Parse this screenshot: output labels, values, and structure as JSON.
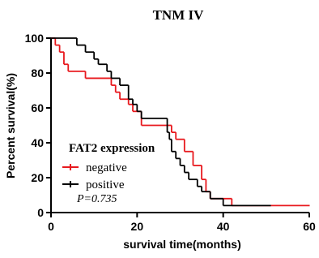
{
  "chart_data": {
    "type": "survival",
    "title": "TNM IV",
    "x_label": "survival time(months)",
    "y_label": "Percent survival(%)",
    "legend_title": "FAT2 expression",
    "annotation": "P=0.735",
    "xlim": [
      0,
      60
    ],
    "xticks": [
      0,
      20,
      40,
      60
    ],
    "ylim": [
      0,
      100
    ],
    "yticks": [
      0,
      20,
      40,
      60,
      80,
      100
    ],
    "series": [
      {
        "name": "negative",
        "color": "#e8191e",
        "x": [
          0,
          1,
          2,
          3,
          4,
          8,
          14,
          15,
          16,
          18,
          19,
          21,
          28,
          29,
          31,
          33,
          35,
          36,
          37,
          42,
          60
        ],
        "values": [
          100,
          96,
          92,
          85,
          81,
          77,
          73,
          69,
          65,
          62,
          58,
          50,
          46,
          42,
          35,
          27,
          19,
          12,
          8,
          4,
          4
        ]
      },
      {
        "name": "positive",
        "color": "#000000",
        "x": [
          0,
          6,
          8,
          10,
          11,
          13,
          14,
          16,
          18,
          19,
          20,
          21,
          27,
          27.5,
          28,
          29,
          30,
          31,
          32,
          34,
          35,
          37,
          40,
          51
        ],
        "values": [
          100,
          96,
          92,
          88,
          85,
          81,
          77,
          73,
          65,
          62,
          58,
          54,
          46,
          42,
          35,
          31,
          27,
          23,
          19,
          15,
          12,
          8,
          4,
          4
        ]
      }
    ]
  }
}
